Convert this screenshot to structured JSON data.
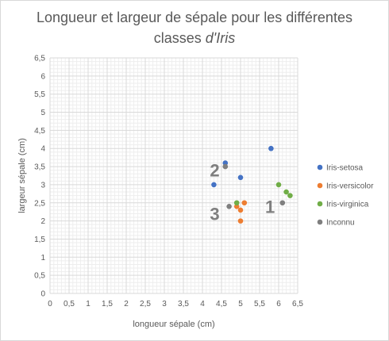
{
  "chart_data": {
    "type": "scatter",
    "title_line1": "Longueur et largeur de sépale pour les différentes",
    "title_line2_prefix": "classes ",
    "title_line2_italic": "d'Iris",
    "xlabel": "longueur sépale (cm)",
    "ylabel": "largeur sépale (cm)",
    "xlim": [
      0,
      6.5
    ],
    "ylim": [
      0,
      6.5
    ],
    "x_ticks": [
      "0",
      "0,5",
      "1",
      "1,5",
      "2",
      "2,5",
      "3",
      "3,5",
      "4",
      "4,5",
      "5",
      "5,5",
      "6",
      "6,5"
    ],
    "y_ticks": [
      "0",
      "0,5",
      "1",
      "1,5",
      "2",
      "2,5",
      "3",
      "3,5",
      "4",
      "4,5",
      "5",
      "5,5",
      "6",
      "6,5"
    ],
    "grid": true,
    "legend_position": "right",
    "series": [
      {
        "name": "Iris-setosa",
        "color": "#4472c4",
        "points": [
          {
            "x": 4.3,
            "y": 3.0
          },
          {
            "x": 4.6,
            "y": 3.6
          },
          {
            "x": 5.0,
            "y": 3.2
          },
          {
            "x": 5.8,
            "y": 4.0
          }
        ]
      },
      {
        "name": "Iris-versicolor",
        "color": "#ed7d31",
        "points": [
          {
            "x": 4.9,
            "y": 2.4
          },
          {
            "x": 5.0,
            "y": 2.3
          },
          {
            "x": 5.1,
            "y": 2.5
          },
          {
            "x": 5.0,
            "y": 2.0
          }
        ]
      },
      {
        "name": "Iris-virginica",
        "color": "#70ad47",
        "points": [
          {
            "x": 4.9,
            "y": 2.5
          },
          {
            "x": 6.0,
            "y": 3.0
          },
          {
            "x": 6.2,
            "y": 2.8
          },
          {
            "x": 6.3,
            "y": 2.7
          }
        ]
      },
      {
        "name": "Inconnu",
        "color": "#7f7f7f",
        "points": [
          {
            "x": 4.6,
            "y": 3.5
          },
          {
            "x": 4.7,
            "y": 2.4
          },
          {
            "x": 6.1,
            "y": 2.5
          }
        ]
      }
    ],
    "annotations": [
      {
        "text": "2",
        "x": 4.45,
        "y": 3.4
      },
      {
        "text": "3",
        "x": 4.45,
        "y": 2.2
      },
      {
        "text": "1",
        "x": 5.9,
        "y": 2.4
      }
    ]
  }
}
